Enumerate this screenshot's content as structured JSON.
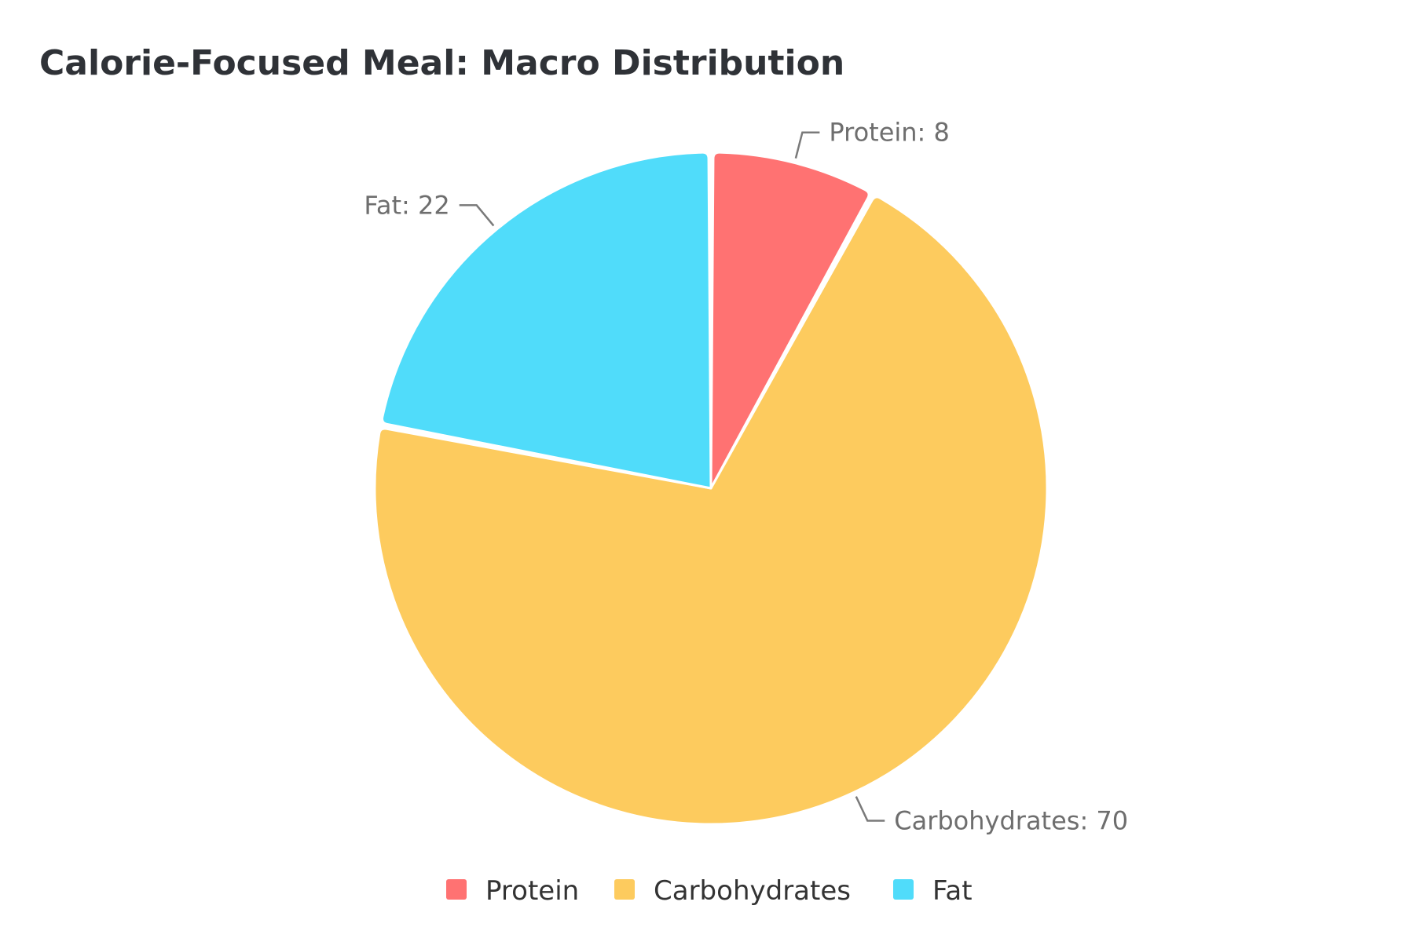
{
  "chart_data": {
    "type": "pie",
    "title": "Calorie-Focused Meal: Macro Distribution",
    "slices": [
      {
        "name": "Protein",
        "value": 8,
        "label": "Protein: 8",
        "color": "#ff7272"
      },
      {
        "name": "Carbohydrates",
        "value": 70,
        "label": "Carbohydrates: 70",
        "color": "#fdcb5e"
      },
      {
        "name": "Fat",
        "value": 22,
        "label": "Fat: 22",
        "color": "#50dcfa"
      }
    ],
    "start_angle_deg": 0,
    "direction": "clockwise",
    "legend": {
      "position": "bottom-center",
      "items": [
        "Protein",
        "Carbohydrates",
        "Fat"
      ]
    },
    "colors": {
      "title": "#2f3237",
      "label_text": "#6e6e6e",
      "leader_line": "#7a7a7a",
      "legend_text": "#333333",
      "background": "#ffffff"
    }
  }
}
